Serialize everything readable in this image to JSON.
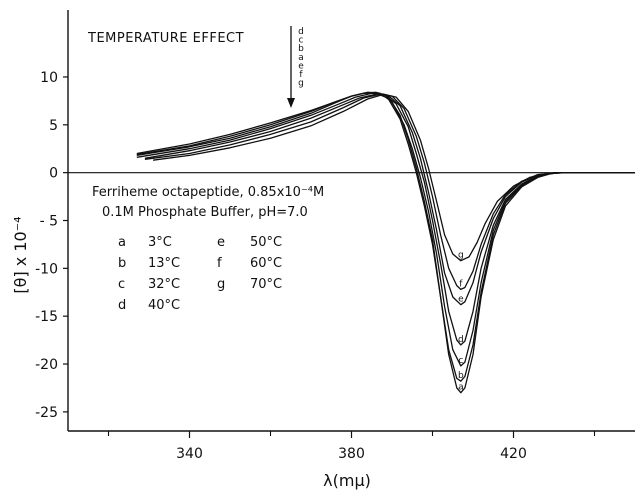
{
  "chart_data": {
    "type": "line",
    "xlabel": "λ(mμ)",
    "ylabel": "[θ] x 10⁻⁴",
    "xlim": [
      310,
      450
    ],
    "ylim": [
      -27,
      17
    ],
    "xticks": [
      340,
      380,
      420
    ],
    "xticks_minor": [
      320,
      360,
      400,
      440
    ],
    "yticks": [
      10,
      5,
      0,
      -5,
      -10,
      -15,
      -20,
      -25
    ],
    "yticklabels": [
      "10",
      "5",
      "0",
      "- 5",
      "-10",
      "-15",
      "-20",
      "-25"
    ],
    "annotation": {
      "title": "TEMPERATURE EFFECT",
      "order_letters": [
        "d",
        "c",
        "b",
        "a",
        "e",
        "f",
        "g"
      ]
    },
    "legend_title_1": "Ferriheme octapeptide, 0.85x10⁻⁴M",
    "legend_title_2": "0.1M Phosphate Buffer, pH=7.0",
    "legend_entries": [
      {
        "key": "a",
        "label": "3°C"
      },
      {
        "key": "b",
        "label": "13°C"
      },
      {
        "key": "c",
        "label": "32°C"
      },
      {
        "key": "d",
        "label": "40°C"
      },
      {
        "key": "e",
        "label": "50°C"
      },
      {
        "key": "f",
        "label": "60°C"
      },
      {
        "key": "g",
        "label": "70°C"
      }
    ],
    "series": [
      {
        "name": "a",
        "points": [
          [
            327,
            2.0
          ],
          [
            340,
            3.0
          ],
          [
            350,
            4.0
          ],
          [
            360,
            5.2
          ],
          [
            370,
            6.5
          ],
          [
            376,
            7.4
          ],
          [
            380,
            8.0
          ],
          [
            383,
            8.3
          ],
          [
            386,
            8.4
          ],
          [
            389,
            8.0
          ],
          [
            392,
            6.0
          ],
          [
            394,
            3.5
          ],
          [
            396,
            0.5
          ],
          [
            398,
            -3.0
          ],
          [
            400,
            -7.0
          ],
          [
            402,
            -13.0
          ],
          [
            404,
            -19.0
          ],
          [
            406,
            -22.5
          ],
          [
            407,
            -23.0
          ],
          [
            408,
            -22.5
          ],
          [
            410,
            -19.0
          ],
          [
            412,
            -13.0
          ],
          [
            415,
            -7.0
          ],
          [
            418,
            -3.5
          ],
          [
            422,
            -1.5
          ],
          [
            426,
            -0.5
          ],
          [
            430,
            0.0
          ],
          [
            450,
            0.0
          ]
        ]
      },
      {
        "name": "b",
        "points": [
          [
            327,
            1.9
          ],
          [
            340,
            2.8
          ],
          [
            350,
            3.8
          ],
          [
            360,
            5.0
          ],
          [
            370,
            6.4
          ],
          [
            376,
            7.4
          ],
          [
            380,
            8.0
          ],
          [
            383,
            8.3
          ],
          [
            386,
            8.3
          ],
          [
            389,
            7.8
          ],
          [
            392,
            5.6
          ],
          [
            394,
            3.0
          ],
          [
            396,
            0.0
          ],
          [
            398,
            -3.5
          ],
          [
            400,
            -7.5
          ],
          [
            402,
            -13.0
          ],
          [
            404,
            -18.5
          ],
          [
            406,
            -21.5
          ],
          [
            407,
            -21.8
          ],
          [
            408,
            -21.3
          ],
          [
            410,
            -18.0
          ],
          [
            412,
            -12.5
          ],
          [
            415,
            -6.5
          ],
          [
            418,
            -3.2
          ],
          [
            422,
            -1.4
          ],
          [
            426,
            -0.4
          ],
          [
            430,
            0.0
          ],
          [
            450,
            0.0
          ]
        ]
      },
      {
        "name": "c",
        "points": [
          [
            327,
            1.8
          ],
          [
            340,
            2.7
          ],
          [
            350,
            3.6
          ],
          [
            360,
            4.8
          ],
          [
            370,
            6.2
          ],
          [
            376,
            7.3
          ],
          [
            380,
            8.0
          ],
          [
            384,
            8.4
          ],
          [
            387,
            8.3
          ],
          [
            390,
            7.4
          ],
          [
            393,
            5.0
          ],
          [
            395,
            2.5
          ],
          [
            397,
            -0.5
          ],
          [
            399,
            -4.0
          ],
          [
            401,
            -8.5
          ],
          [
            403,
            -14.0
          ],
          [
            405,
            -18.5
          ],
          [
            407,
            -20.2
          ],
          [
            408,
            -19.8
          ],
          [
            410,
            -16.5
          ],
          [
            412,
            -11.5
          ],
          [
            415,
            -6.0
          ],
          [
            418,
            -3.0
          ],
          [
            422,
            -1.3
          ],
          [
            426,
            -0.3
          ],
          [
            431,
            0.0
          ],
          [
            450,
            0.0
          ]
        ]
      },
      {
        "name": "d",
        "points": [
          [
            327,
            1.6
          ],
          [
            340,
            2.5
          ],
          [
            350,
            3.4
          ],
          [
            360,
            4.6
          ],
          [
            370,
            6.0
          ],
          [
            377,
            7.2
          ],
          [
            381,
            7.9
          ],
          [
            385,
            8.3
          ],
          [
            388,
            8.2
          ],
          [
            391,
            7.2
          ],
          [
            394,
            4.8
          ],
          [
            396,
            2.0
          ],
          [
            398,
            -1.0
          ],
          [
            400,
            -5.0
          ],
          [
            402,
            -9.5
          ],
          [
            404,
            -14.5
          ],
          [
            406,
            -17.5
          ],
          [
            407,
            -18.0
          ],
          [
            408,
            -17.6
          ],
          [
            410,
            -14.5
          ],
          [
            412,
            -10.0
          ],
          [
            415,
            -5.5
          ],
          [
            418,
            -2.8
          ],
          [
            422,
            -1.2
          ],
          [
            426,
            -0.3
          ],
          [
            431,
            0.0
          ],
          [
            450,
            0.0
          ]
        ]
      },
      {
        "name": "e",
        "points": [
          [
            329,
            1.5
          ],
          [
            340,
            2.3
          ],
          [
            350,
            3.2
          ],
          [
            360,
            4.3
          ],
          [
            370,
            5.7
          ],
          [
            378,
            7.1
          ],
          [
            382,
            7.8
          ],
          [
            386,
            8.2
          ],
          [
            389,
            8.1
          ],
          [
            392,
            7.0
          ],
          [
            395,
            4.2
          ],
          [
            397,
            1.5
          ],
          [
            399,
            -2.0
          ],
          [
            401,
            -6.0
          ],
          [
            403,
            -10.5
          ],
          [
            405,
            -13.0
          ],
          [
            407,
            -13.8
          ],
          [
            408,
            -13.5
          ],
          [
            410,
            -11.5
          ],
          [
            412,
            -8.3
          ],
          [
            415,
            -4.8
          ],
          [
            418,
            -2.5
          ],
          [
            422,
            -1.0
          ],
          [
            426,
            -0.2
          ],
          [
            432,
            0.0
          ],
          [
            450,
            0.0
          ]
        ]
      },
      {
        "name": "f",
        "points": [
          [
            329,
            1.4
          ],
          [
            340,
            2.0
          ],
          [
            350,
            2.9
          ],
          [
            360,
            4.0
          ],
          [
            370,
            5.3
          ],
          [
            378,
            6.8
          ],
          [
            383,
            7.8
          ],
          [
            387,
            8.2
          ],
          [
            390,
            8.0
          ],
          [
            393,
            6.7
          ],
          [
            396,
            3.8
          ],
          [
            398,
            1.0
          ],
          [
            400,
            -2.5
          ],
          [
            402,
            -6.5
          ],
          [
            404,
            -10.0
          ],
          [
            406,
            -11.8
          ],
          [
            407,
            -12.2
          ],
          [
            408,
            -12.0
          ],
          [
            410,
            -10.3
          ],
          [
            412,
            -7.5
          ],
          [
            415,
            -4.3
          ],
          [
            418,
            -2.3
          ],
          [
            422,
            -0.9
          ],
          [
            426,
            -0.2
          ],
          [
            432,
            0.0
          ],
          [
            450,
            0.0
          ]
        ]
      },
      {
        "name": "g",
        "points": [
          [
            331,
            1.3
          ],
          [
            340,
            1.8
          ],
          [
            350,
            2.6
          ],
          [
            360,
            3.6
          ],
          [
            370,
            4.9
          ],
          [
            378,
            6.4
          ],
          [
            384,
            7.7
          ],
          [
            388,
            8.2
          ],
          [
            391,
            7.9
          ],
          [
            394,
            6.4
          ],
          [
            397,
            3.4
          ],
          [
            399,
            0.5
          ],
          [
            401,
            -3.0
          ],
          [
            403,
            -6.5
          ],
          [
            405,
            -8.5
          ],
          [
            407,
            -9.2
          ],
          [
            409,
            -8.8
          ],
          [
            411,
            -7.3
          ],
          [
            413,
            -5.3
          ],
          [
            416,
            -3.0
          ],
          [
            420,
            -1.4
          ],
          [
            424,
            -0.5
          ],
          [
            428,
            -0.1
          ],
          [
            433,
            0.0
          ],
          [
            450,
            0.0
          ]
        ]
      }
    ]
  }
}
